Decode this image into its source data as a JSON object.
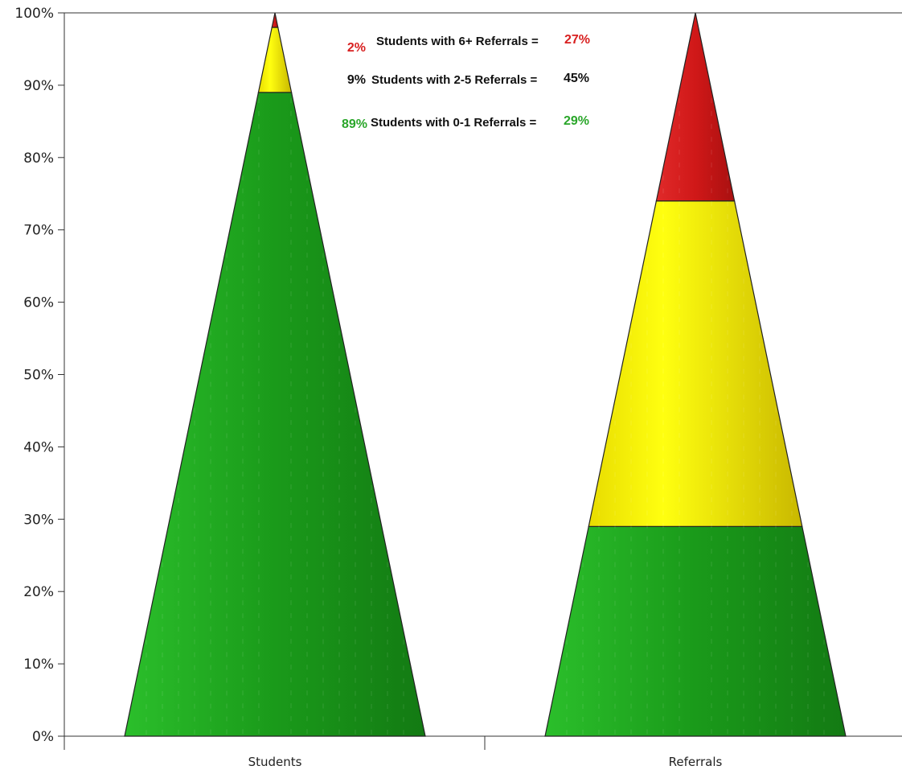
{
  "chart_data": {
    "type": "pyramid",
    "categories": [
      "Students",
      "Referrals"
    ],
    "ylim": [
      0,
      100
    ],
    "yticks": [
      "0%",
      "10%",
      "20%",
      "30%",
      "40%",
      "50%",
      "60%",
      "70%",
      "80%",
      "90%",
      "100%"
    ],
    "series": [
      {
        "name": "Students with 0-1 Referrals",
        "color": "#1e9e1e",
        "values": [
          89,
          29
        ]
      },
      {
        "name": "Students with 2-5 Referrals",
        "color": "#f2e600",
        "values": [
          9,
          45
        ]
      },
      {
        "name": "Students with 6+ Referrals",
        "color": "#d81f1f",
        "values": [
          2,
          27
        ]
      }
    ],
    "legend": {
      "placement": "top-center",
      "entries": [
        {
          "left": "2%",
          "label": "Students with 6+ Referrals =",
          "right": "27%",
          "left_color": "#d81f1f",
          "right_color": "#d81f1f"
        },
        {
          "left": "9%",
          "label": "Students with 2-5 Referrals =",
          "right": "45%",
          "left_color": "#111111",
          "right_color": "#111111"
        },
        {
          "left": "89%",
          "label": "Students with 0-1 Referrals =",
          "right": "29%",
          "left_color": "#2aa62a",
          "right_color": "#2aa62a"
        }
      ]
    }
  }
}
